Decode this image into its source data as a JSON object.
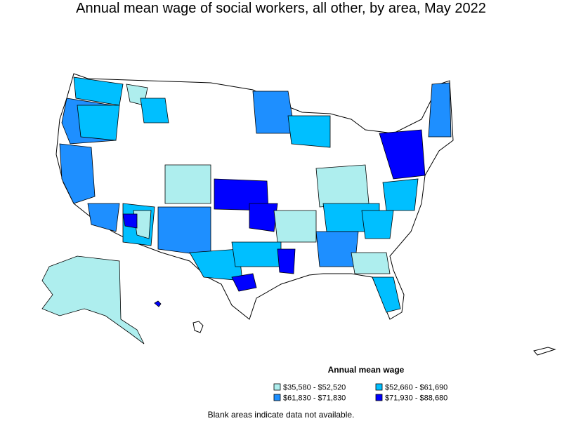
{
  "title": "Annual mean wage of social workers, all other, by area, May 2022",
  "legend": {
    "title": "Annual mean wage",
    "items": [
      {
        "label": "$35,580 - $52,520",
        "color": "#aeeeee"
      },
      {
        "label": "$52,660 - $61,690",
        "color": "#00bfff"
      },
      {
        "label": "$61,830 - $71,830",
        "color": "#1e8fff"
      },
      {
        "label": "$71,930 - $88,680",
        "color": "#0000ff"
      }
    ]
  },
  "note": "Blank areas indicate data not available."
}
